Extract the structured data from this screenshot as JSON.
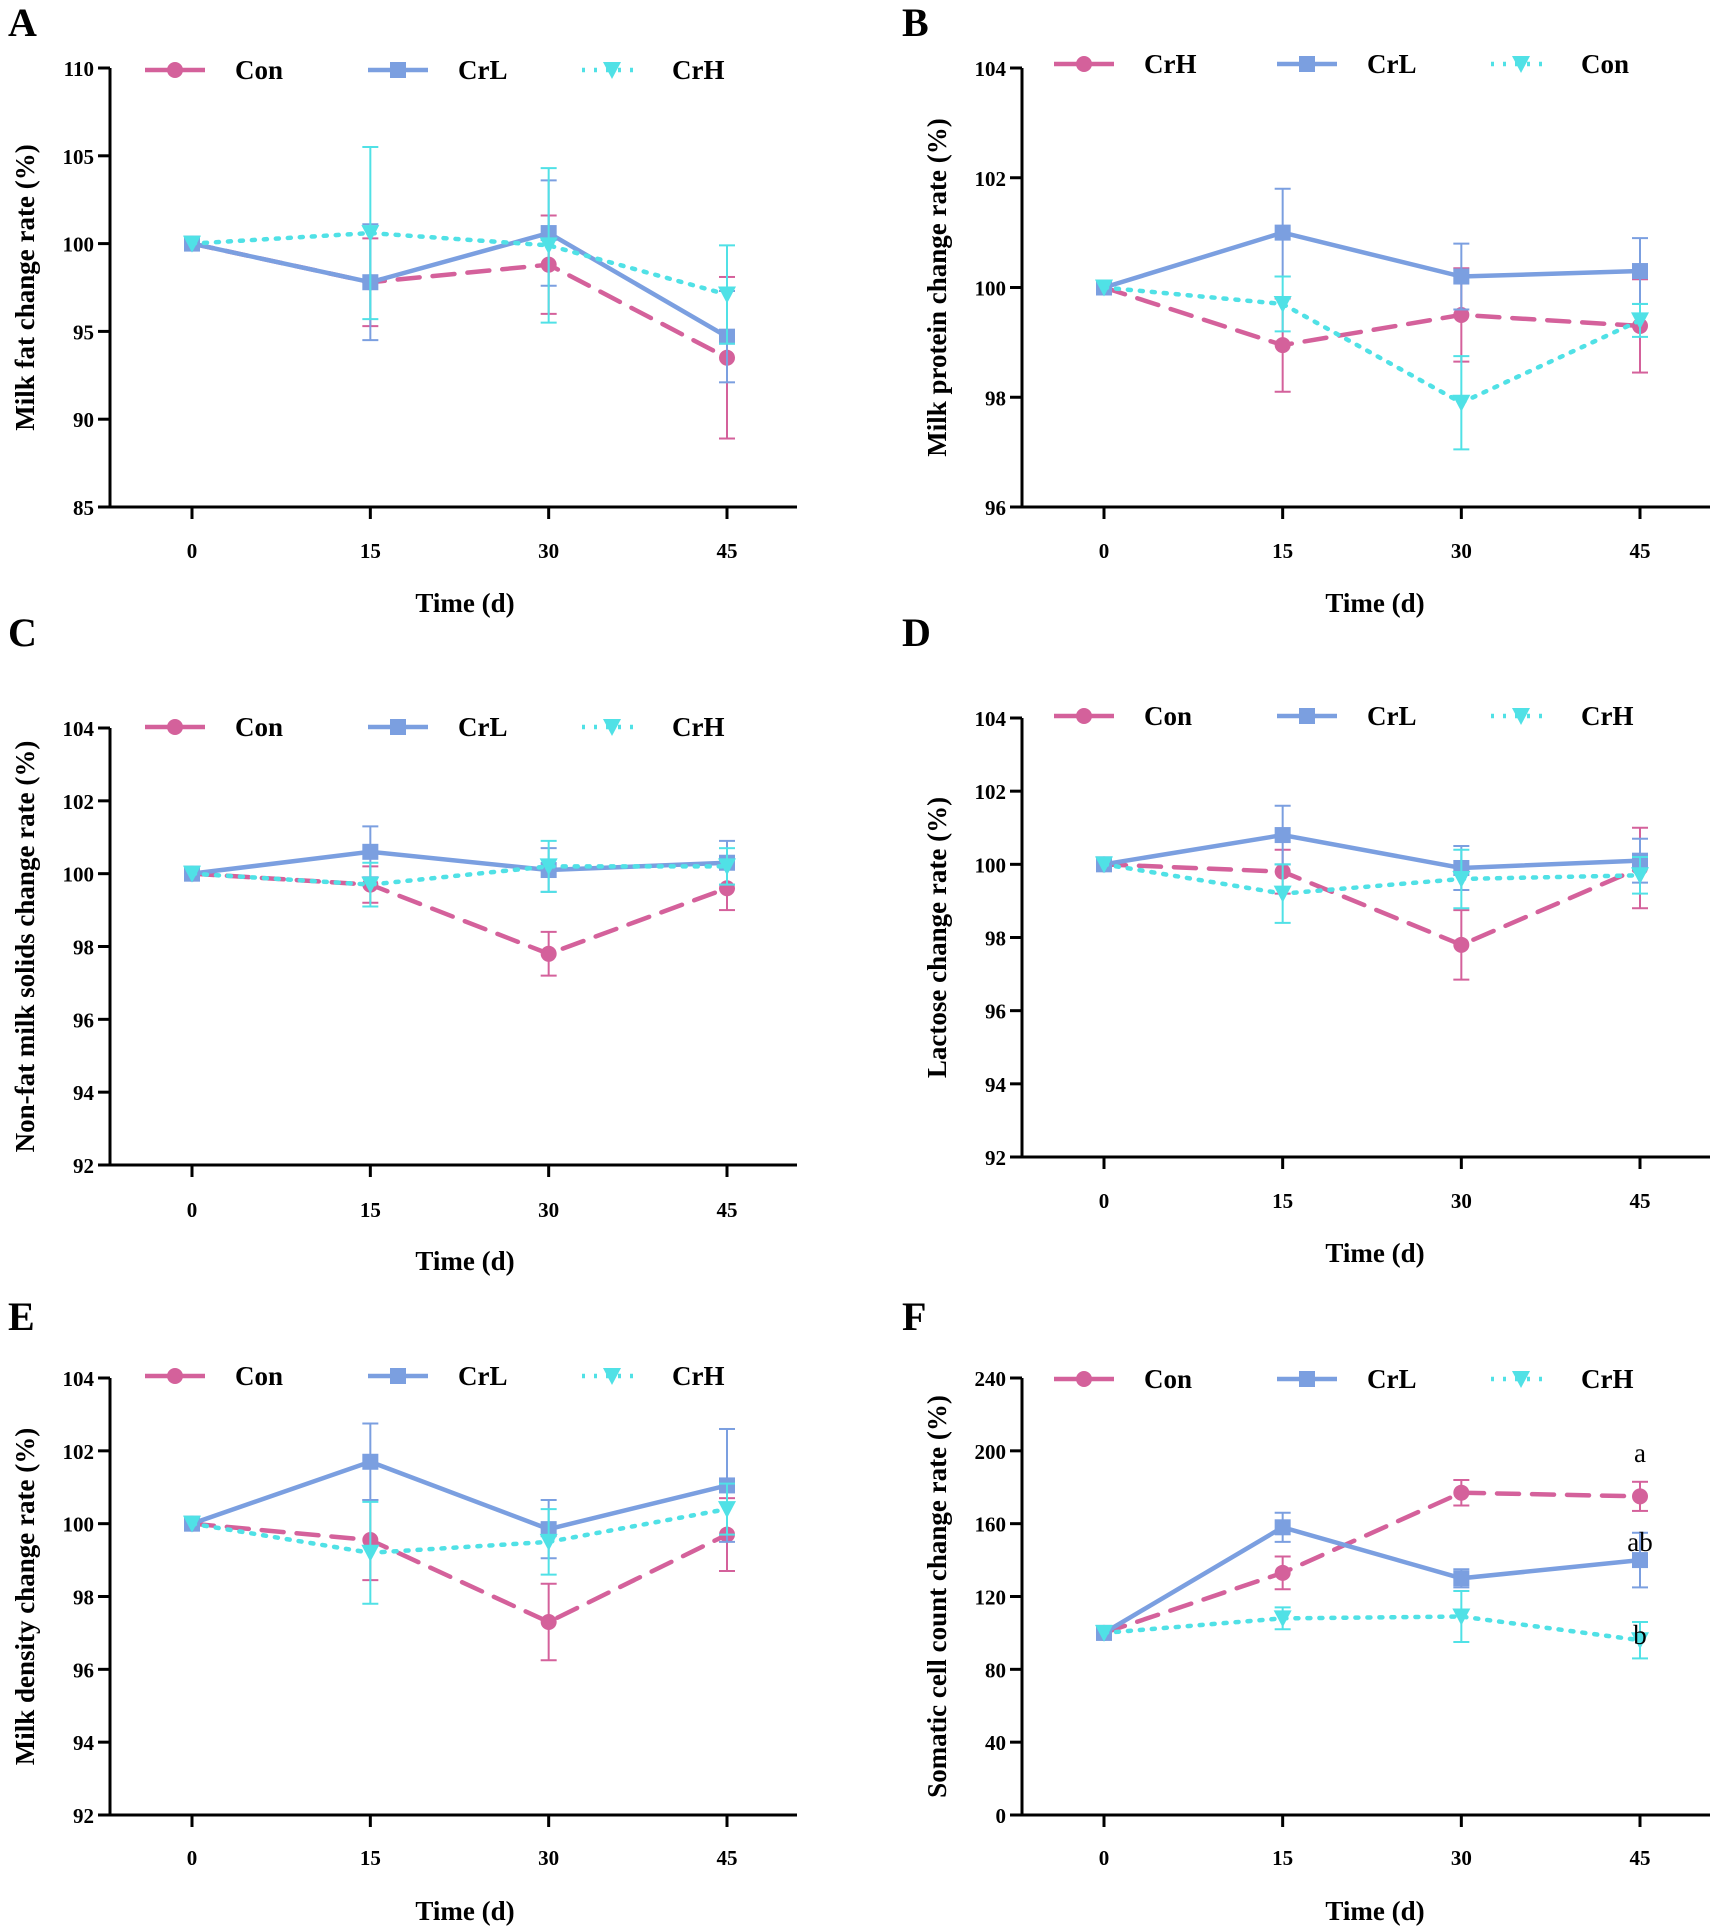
{
  "figure": {
    "panels": [
      "A",
      "B",
      "C",
      "D",
      "E",
      "F"
    ]
  },
  "chart_data": [
    {
      "panel": "A",
      "type": "line",
      "xlabel": "Time (d)",
      "ylabel": "Milk fat change rate (%)",
      "x": [
        0,
        15,
        30,
        45
      ],
      "ylim": [
        85,
        110
      ],
      "yticks": [
        85,
        90,
        95,
        100,
        105,
        110
      ],
      "legend": [
        "Con",
        "CrL",
        "CrH"
      ],
      "series": [
        {
          "name": "Con",
          "color": "#d4619b",
          "style": "dashed",
          "marker": "circle",
          "values": [
            100,
            97.8,
            98.8,
            93.5
          ],
          "err": [
            0,
            2.5,
            2.8,
            4.6
          ]
        },
        {
          "name": "CrL",
          "color": "#7b9fe0",
          "style": "solid",
          "marker": "square",
          "values": [
            100,
            97.8,
            100.6,
            94.7
          ],
          "err": [
            0,
            3.3,
            3.0,
            2.6
          ]
        },
        {
          "name": "CrH",
          "color": "#50e1e6",
          "style": "dotted",
          "marker": "triangle-down",
          "values": [
            100,
            100.6,
            99.9,
            97.1
          ],
          "err": [
            0,
            4.9,
            4.4,
            2.8
          ]
        }
      ],
      "annotations": []
    },
    {
      "panel": "B",
      "type": "line",
      "xlabel": "Time (d)",
      "ylabel": "Milk protein change rate (%)",
      "x": [
        0,
        15,
        30,
        45
      ],
      "ylim": [
        96,
        104
      ],
      "yticks": [
        96,
        98,
        100,
        102,
        104
      ],
      "legend": [
        "CrH",
        "CrL",
        "Con"
      ],
      "series": [
        {
          "name": "CrH",
          "color": "#d4619b",
          "style": "dashed",
          "marker": "circle",
          "values": [
            100,
            98.95,
            99.5,
            99.3
          ],
          "err": [
            0,
            0.85,
            0.85,
            0.85
          ]
        },
        {
          "name": "CrL",
          "color": "#7b9fe0",
          "style": "solid",
          "marker": "square",
          "values": [
            100,
            101.0,
            100.2,
            100.3
          ],
          "err": [
            0,
            0.8,
            0.6,
            0.6
          ]
        },
        {
          "name": "Con",
          "color": "#50e1e6",
          "style": "dotted",
          "marker": "triangle-down",
          "values": [
            100,
            99.7,
            97.9,
            99.4
          ],
          "err": [
            0,
            0.5,
            0.85,
            0.3
          ]
        }
      ],
      "annotations": []
    },
    {
      "panel": "C",
      "type": "line",
      "xlabel": "Time (d)",
      "ylabel": "Non-fat milk solids change rate (%)",
      "x": [
        0,
        15,
        30,
        45
      ],
      "ylim": [
        92,
        104
      ],
      "yticks": [
        92,
        94,
        96,
        98,
        100,
        102,
        104
      ],
      "legend": [
        "Con",
        "CrL",
        "CrH"
      ],
      "series": [
        {
          "name": "Con",
          "color": "#d4619b",
          "style": "dashed",
          "marker": "circle",
          "values": [
            100,
            99.7,
            97.8,
            99.6
          ],
          "err": [
            0,
            0.5,
            0.6,
            0.6
          ]
        },
        {
          "name": "CrL",
          "color": "#7b9fe0",
          "style": "solid",
          "marker": "square",
          "values": [
            100,
            100.6,
            100.1,
            100.3
          ],
          "err": [
            0,
            0.7,
            0.6,
            0.6
          ]
        },
        {
          "name": "CrH",
          "color": "#50e1e6",
          "style": "dotted",
          "marker": "triangle-down",
          "values": [
            100,
            99.7,
            100.2,
            100.2
          ],
          "err": [
            0,
            0.6,
            0.7,
            0.5
          ]
        }
      ],
      "annotations": []
    },
    {
      "panel": "D",
      "type": "line",
      "xlabel": "Time (d)",
      "ylabel": "Lactose change rate (%)",
      "x": [
        0,
        15,
        30,
        45
      ],
      "ylim": [
        92,
        104
      ],
      "yticks": [
        92,
        94,
        96,
        98,
        100,
        102,
        104
      ],
      "legend": [
        "Con",
        "CrL",
        "CrH"
      ],
      "series": [
        {
          "name": "Con",
          "color": "#d4619b",
          "style": "dashed",
          "marker": "circle",
          "values": [
            100,
            99.8,
            97.8,
            99.9
          ],
          "err": [
            0,
            0.6,
            0.95,
            1.1
          ]
        },
        {
          "name": "CrL",
          "color": "#7b9fe0",
          "style": "solid",
          "marker": "square",
          "values": [
            100,
            100.8,
            99.9,
            100.1
          ],
          "err": [
            0,
            0.8,
            0.6,
            0.6
          ]
        },
        {
          "name": "CrH",
          "color": "#50e1e6",
          "style": "dotted",
          "marker": "triangle-down",
          "values": [
            100,
            99.2,
            99.6,
            99.7
          ],
          "err": [
            0,
            0.8,
            0.8,
            0.5
          ]
        }
      ],
      "annotations": []
    },
    {
      "panel": "E",
      "type": "line",
      "xlabel": "Time (d)",
      "ylabel": "Milk density change rate (%)",
      "x": [
        0,
        15,
        30,
        45
      ],
      "ylim": [
        92,
        104
      ],
      "yticks": [
        92,
        94,
        96,
        98,
        100,
        102,
        104
      ],
      "legend": [
        "Con",
        "CrL",
        "CrH"
      ],
      "series": [
        {
          "name": "Con",
          "color": "#d4619b",
          "style": "dashed",
          "marker": "circle",
          "values": [
            100,
            99.55,
            97.3,
            99.7
          ],
          "err": [
            0,
            1.1,
            1.05,
            1.0
          ]
        },
        {
          "name": "CrL",
          "color": "#7b9fe0",
          "style": "solid",
          "marker": "square",
          "values": [
            100,
            101.7,
            99.85,
            101.05
          ],
          "err": [
            0,
            1.05,
            0.8,
            1.55
          ]
        },
        {
          "name": "CrH",
          "color": "#50e1e6",
          "style": "dotted",
          "marker": "triangle-down",
          "values": [
            100,
            99.2,
            99.5,
            100.4
          ],
          "err": [
            0,
            1.4,
            0.9,
            0.7
          ]
        }
      ],
      "annotations": []
    },
    {
      "panel": "F",
      "type": "line",
      "xlabel": "Time (d)",
      "ylabel": "Somatic cell count change rate (%)",
      "x": [
        0,
        15,
        30,
        45
      ],
      "ylim": [
        0,
        240
      ],
      "yticks": [
        0,
        40,
        80,
        120,
        160,
        200,
        240
      ],
      "legend": [
        "Con",
        "CrL",
        "CrH"
      ],
      "series": [
        {
          "name": "Con",
          "color": "#d4619b",
          "style": "dashed",
          "marker": "circle",
          "values": [
            100,
            133,
            177,
            175
          ],
          "err": [
            0,
            9,
            7,
            8
          ]
        },
        {
          "name": "CrL",
          "color": "#7b9fe0",
          "style": "solid",
          "marker": "square",
          "values": [
            100,
            158,
            130,
            140
          ],
          "err": [
            0,
            8,
            5,
            15
          ]
        },
        {
          "name": "CrH",
          "color": "#50e1e6",
          "style": "dotted",
          "marker": "triangle-down",
          "values": [
            100,
            108,
            109,
            96
          ],
          "err": [
            0,
            6,
            14,
            10
          ]
        }
      ],
      "annotations": [
        {
          "text": "a",
          "x": 45,
          "y": 194
        },
        {
          "text": "ab",
          "x": 45,
          "y": 145
        },
        {
          "text": "b",
          "x": 45,
          "y": 94
        }
      ]
    }
  ]
}
